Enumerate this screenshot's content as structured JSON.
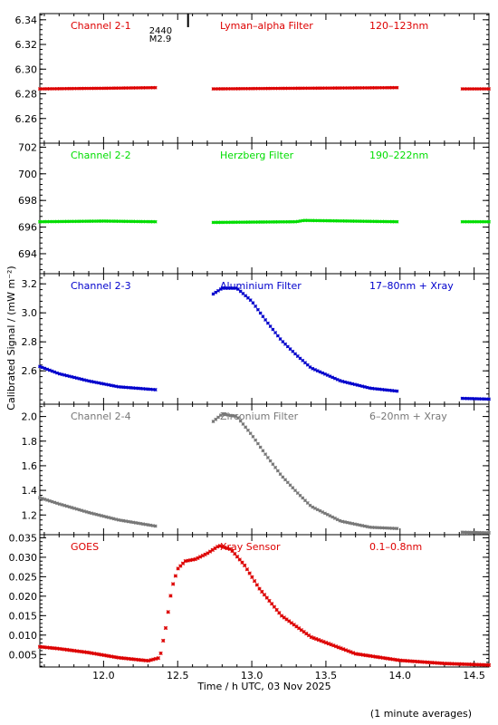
{
  "chart_data": {
    "type": "scatter",
    "xlabel": "Time / h UTC, 03 Nov 2025",
    "ylabel": "Calibrated Signal / (mW m⁻²)",
    "footnote": "(1 minute averages)",
    "xlim": [
      11.57,
      14.6
    ],
    "xticks": [
      "12.0",
      "12.5",
      "13.0",
      "13.5",
      "14.0",
      "14.5"
    ],
    "flare_marker": {
      "x": 12.57,
      "time": "2440",
      "class": "M2.9"
    },
    "panels": [
      {
        "channel": "Channel 2-1",
        "filter": "Lyman–alpha Filter",
        "band": "120–123nm",
        "color": "#dd0000",
        "ylim": [
          6.24,
          6.345
        ],
        "yticks": [
          "6.26",
          "6.28",
          "6.30",
          "6.32",
          "6.34"
        ],
        "segments": [
          {
            "x": [
              11.57,
              12.0,
              12.35
            ],
            "y": [
              6.284,
              6.2845,
              6.285
            ]
          },
          {
            "x": [
              12.74,
              13.3,
              13.98
            ],
            "y": [
              6.284,
              6.2845,
              6.285
            ]
          },
          {
            "x": [
              14.42,
              14.6
            ],
            "y": [
              6.284,
              6.284
            ]
          }
        ]
      },
      {
        "channel": "Channel 2-2",
        "filter": "Herzberg Filter",
        "band": "190–222nm",
        "color": "#00dd00",
        "ylim": [
          692.5,
          702.3
        ],
        "yticks": [
          "694",
          "696",
          "698",
          "700",
          "702"
        ],
        "segments": [
          {
            "x": [
              11.57,
              12.0,
              12.35
            ],
            "y": [
              696.4,
              696.45,
              696.4
            ]
          },
          {
            "x": [
              12.74,
              13.3,
              13.35,
              13.98
            ],
            "y": [
              696.35,
              696.4,
              696.5,
              696.4
            ]
          },
          {
            "x": [
              14.42,
              14.6
            ],
            "y": [
              696.4,
              696.4
            ]
          }
        ]
      },
      {
        "channel": "Channel 2-3",
        "filter": "Aluminium Filter",
        "band": "17–80nm + Xray",
        "color": "#0000cc",
        "ylim": [
          2.37,
          3.27
        ],
        "yticks": [
          "2.6",
          "2.8",
          "3.0",
          "3.2"
        ],
        "segments": [
          {
            "x": [
              11.57,
              11.7,
              11.9,
              12.1,
              12.35
            ],
            "y": [
              2.63,
              2.58,
              2.53,
              2.49,
              2.47
            ]
          },
          {
            "x": [
              12.74,
              12.8,
              12.9,
              13.0,
              13.1,
              13.2,
              13.3,
              13.4,
              13.6,
              13.8,
              13.98
            ],
            "y": [
              3.13,
              3.17,
              3.17,
              3.08,
              2.94,
              2.81,
              2.71,
              2.62,
              2.53,
              2.48,
              2.46
            ]
          },
          {
            "x": [
              14.42,
              14.6
            ],
            "y": [
              2.41,
              2.405
            ]
          }
        ]
      },
      {
        "channel": "Channel 2-4",
        "filter": "Zirconium Filter",
        "band": "6–20nm + Xray",
        "color": "#777777",
        "ylim": [
          1.04,
          2.1
        ],
        "yticks": [
          "1.2",
          "1.4",
          "1.6",
          "1.8",
          "2.0"
        ],
        "segments": [
          {
            "x": [
              11.57,
              11.7,
              11.9,
              12.1,
              12.35
            ],
            "y": [
              1.34,
              1.29,
              1.22,
              1.16,
              1.11
            ]
          },
          {
            "x": [
              12.74,
              12.8,
              12.9,
              13.0,
              13.1,
              13.2,
              13.3,
              13.4,
              13.6,
              13.8,
              13.98
            ],
            "y": [
              1.96,
              2.02,
              2.0,
              1.85,
              1.68,
              1.52,
              1.39,
              1.27,
              1.15,
              1.1,
              1.09
            ]
          },
          {
            "x": [
              14.42,
              14.6
            ],
            "y": [
              1.06,
              1.055
            ]
          }
        ]
      },
      {
        "channel": "GOES",
        "filter": "Xray Sensor",
        "band": "0.1–0.8nm",
        "color": "#dd0000",
        "ylim": [
          0.0018,
          0.0358
        ],
        "yticks": [
          "0.005",
          "0.010",
          "0.015",
          "0.020",
          "0.025",
          "0.030",
          "0.035"
        ],
        "segments": [
          {
            "x": [
              11.57,
              11.7,
              11.9,
              12.1,
              12.3,
              12.38,
              12.42,
              12.46,
              12.5,
              12.55,
              12.62,
              12.7,
              12.78,
              12.86,
              12.95,
              13.05,
              13.2,
              13.4,
              13.7,
              14.0,
              14.3,
              14.6
            ],
            "y": [
              0.007,
              0.0065,
              0.0055,
              0.0042,
              0.0034,
              0.0042,
              0.012,
              0.022,
              0.027,
              0.029,
              0.0295,
              0.031,
              0.033,
              0.032,
              0.028,
              0.022,
              0.015,
              0.0095,
              0.0052,
              0.0035,
              0.0027,
              0.0023
            ]
          }
        ]
      }
    ]
  }
}
